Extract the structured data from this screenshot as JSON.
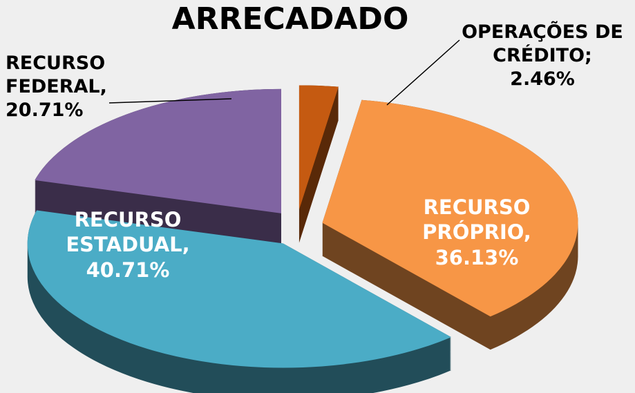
{
  "chart_data": {
    "type": "pie3d",
    "title": "ARRECADADO",
    "categories": [
      "RECURSO FEDERAL,",
      "OPERAÇÕES DE CRÉDITO;",
      "RECURSO PRÓPRIO,",
      "RECURSO ESTADUAL,"
    ],
    "values": [
      20.71,
      2.46,
      36.13,
      40.71
    ],
    "value_labels": [
      "20.71%",
      "2.46%",
      "36.13%",
      "40.71%"
    ],
    "colors": [
      "#8064a2",
      "#c55a11",
      "#f79646",
      "#4bacc6"
    ]
  }
}
